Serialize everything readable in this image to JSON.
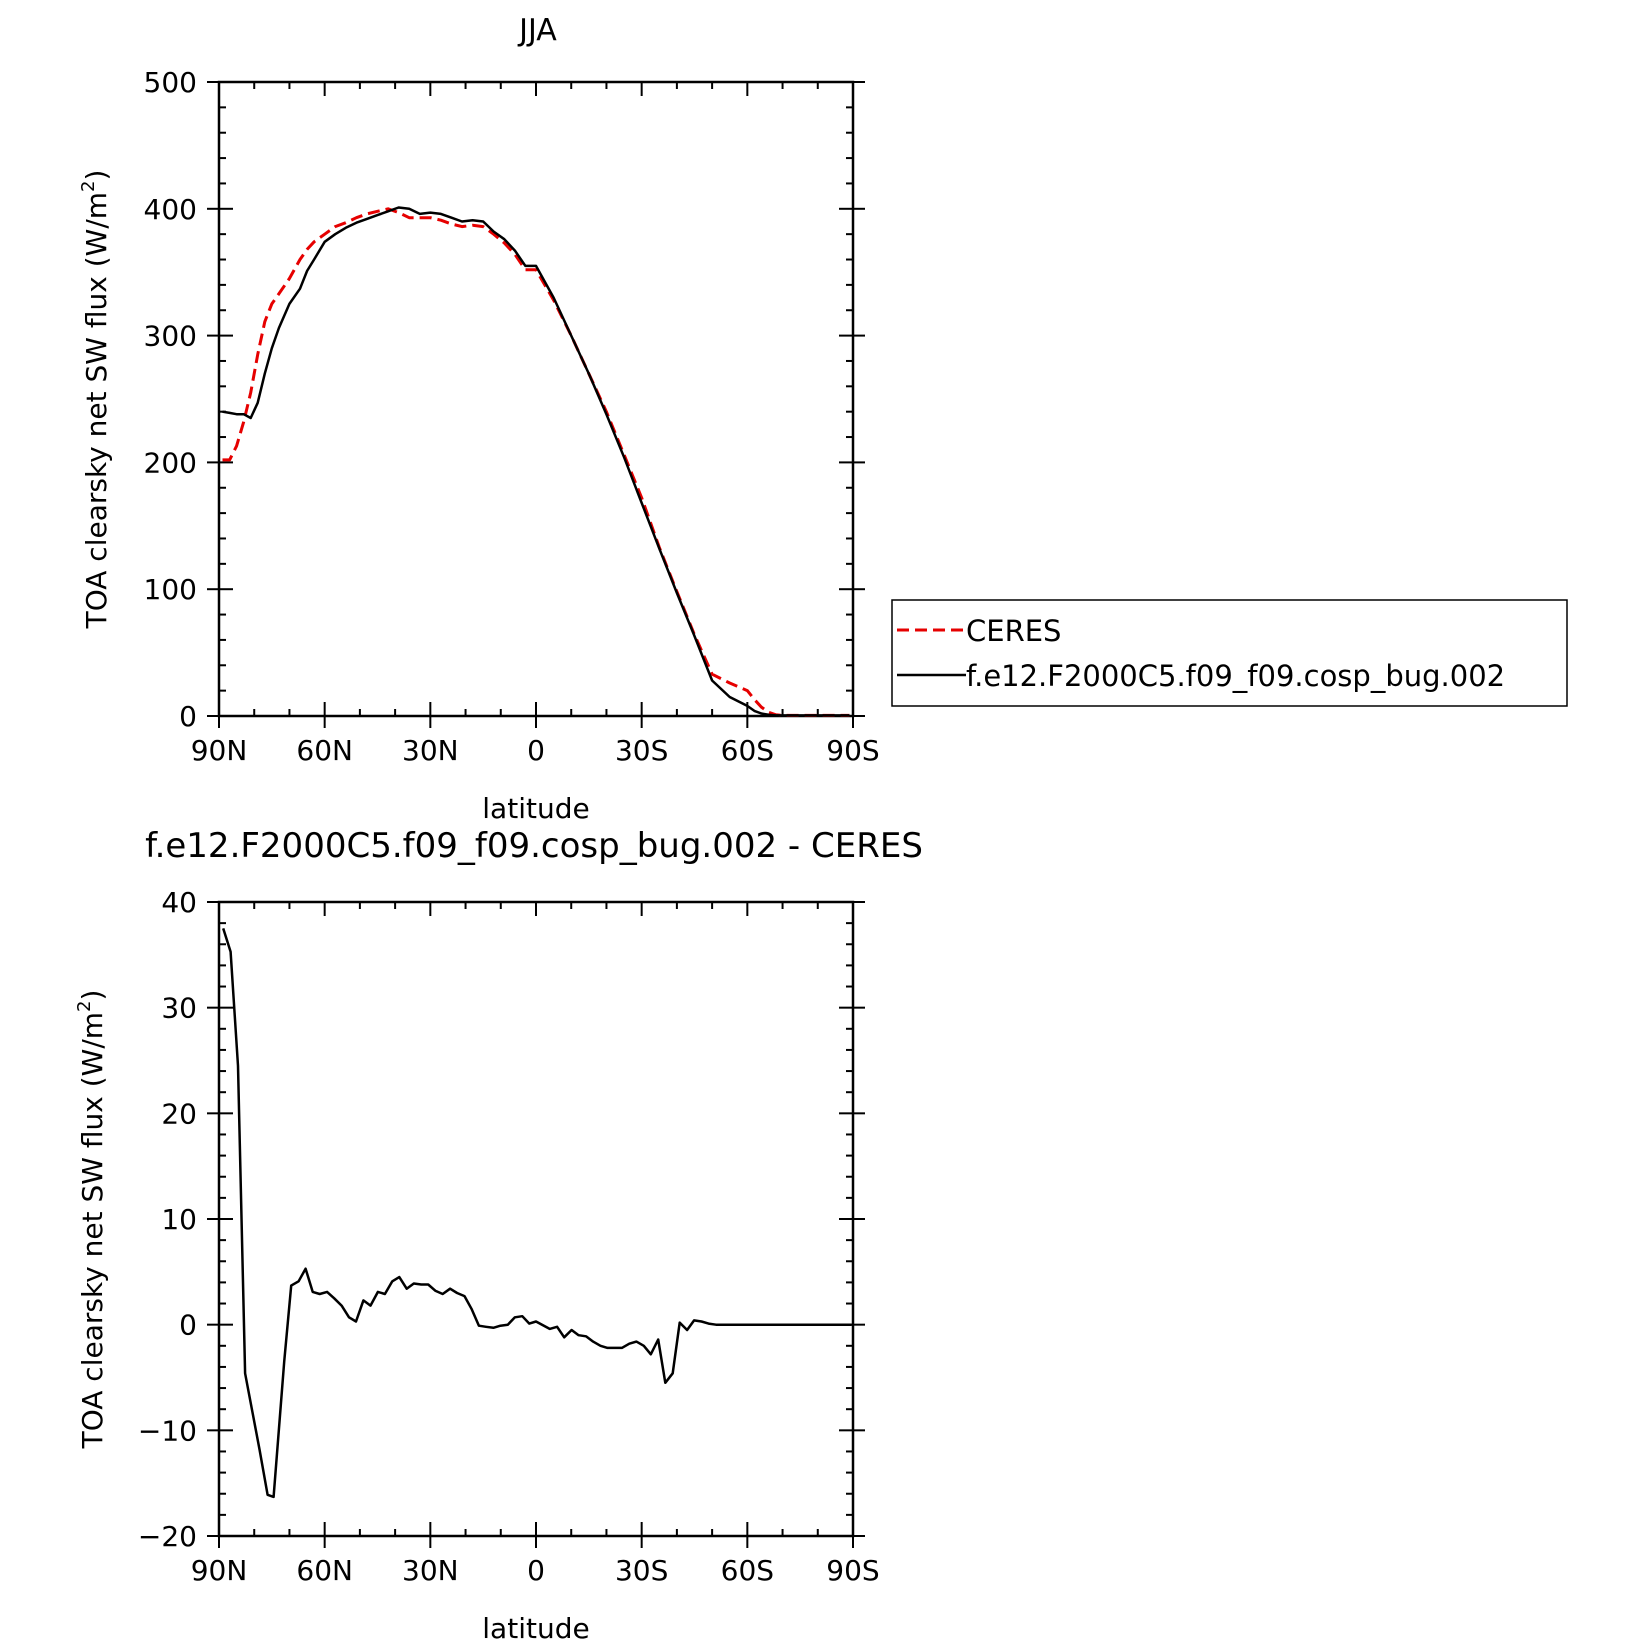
{
  "colors": {
    "ceres": "#e60000",
    "model": "#000000",
    "axis": "#000000",
    "background": "#ffffff"
  },
  "chart_data": [
    {
      "type": "line",
      "title": "JJA",
      "xlabel": "latitude",
      "ylabel": "TOA clearsky net SW flux (W/m²)",
      "ylabel_main": "TOA clearsky net SW flux (W/m",
      "ylabel_sup": "2",
      "ylabel_close": ")",
      "xlim": [
        90,
        -90
      ],
      "ylim": [
        0,
        500
      ],
      "x_ticks": [
        90,
        60,
        30,
        0,
        -30,
        -60,
        -90
      ],
      "x_tick_labels": [
        "90N",
        "60N",
        "30N",
        "0",
        "30S",
        "60S",
        "90S"
      ],
      "y_ticks": [
        0,
        100,
        200,
        300,
        400,
        500
      ],
      "y_tick_labels": [
        "0",
        "100",
        "200",
        "300",
        "400",
        "500"
      ],
      "grid": false,
      "legend": {
        "placement": "right-outside",
        "entries": [
          "CERES",
          "f.e12.F2000C5.f09_f09.cosp_bug.002"
        ]
      },
      "series": [
        {
          "name": "CERES",
          "style": "dashed",
          "color": "#e60000",
          "x": [
            89,
            87,
            85,
            83,
            81,
            79,
            77,
            75,
            73,
            70,
            67,
            65,
            63,
            60,
            57,
            54,
            51,
            48,
            45,
            42,
            39,
            36,
            33,
            30,
            27,
            24,
            21,
            18,
            15,
            12,
            9,
            6,
            3,
            0,
            -5,
            -10,
            -15,
            -20,
            -25,
            -30,
            -35,
            -40,
            -45,
            -50,
            -55,
            -60,
            -62,
            -64,
            -66,
            -68,
            -70,
            -72,
            -75,
            -78,
            -81,
            -84,
            -87,
            -89
          ],
          "y": [
            202,
            202,
            213,
            232,
            255,
            285,
            311,
            325,
            333,
            345,
            360,
            368,
            374,
            380,
            386,
            389,
            393,
            396,
            398,
            400,
            397,
            393,
            393,
            393,
            391,
            388,
            386,
            387,
            386,
            380,
            373,
            364,
            352,
            352,
            328,
            300,
            270,
            240,
            206,
            172,
            133,
            98,
            64,
            33,
            26,
            20,
            13,
            7,
            3,
            1,
            0.5,
            0.5,
            0.5,
            0.5,
            0.5,
            0.5,
            0.5,
            0.5
          ]
        },
        {
          "name": "f.e12.F2000C5.f09_f09.cosp_bug.002",
          "style": "solid",
          "color": "#000000",
          "x": [
            89,
            87,
            85,
            83,
            81,
            79,
            77,
            75,
            73,
            70,
            67,
            65,
            63,
            60,
            57,
            54,
            51,
            48,
            45,
            42,
            39,
            36,
            33,
            30,
            27,
            24,
            21,
            18,
            15,
            12,
            9,
            6,
            3,
            0,
            -5,
            -10,
            -15,
            -20,
            -25,
            -30,
            -35,
            -40,
            -45,
            -50,
            -55,
            -60,
            -62,
            -64,
            -66,
            -68,
            -70,
            -72,
            -75,
            -78,
            -81,
            -84,
            -87,
            -89
          ],
          "y": [
            240,
            239,
            238,
            238,
            235,
            247,
            270,
            290,
            306,
            325,
            337,
            351,
            360,
            374,
            380,
            385,
            389,
            392,
            395,
            398,
            401,
            400,
            396,
            397,
            396,
            393,
            390,
            391,
            390,
            382,
            376,
            367,
            355,
            355,
            330,
            300,
            270,
            238,
            204,
            168,
            132,
            97,
            63,
            28,
            15,
            8,
            4,
            2,
            1,
            0.5,
            0.5,
            0.5,
            0.5,
            0.5,
            0.5,
            0.5,
            0.5,
            0.5
          ]
        }
      ]
    },
    {
      "type": "line",
      "title": "f.e12.F2000C5.f09_f09.cosp_bug.002 - CERES",
      "xlabel": "latitude",
      "ylabel": "TOA clearsky net SW flux (W/m²)",
      "ylabel_main": "TOA clearsky net SW flux (W/m",
      "ylabel_sup": "2",
      "ylabel_close": ")",
      "xlim": [
        90,
        -90
      ],
      "ylim": [
        -20,
        40
      ],
      "x_ticks": [
        90,
        60,
        30,
        0,
        -30,
        -60,
        -90
      ],
      "x_tick_labels": [
        "90N",
        "60N",
        "30N",
        "0",
        "30S",
        "60S",
        "90S"
      ],
      "y_ticks": [
        -20,
        -10,
        0,
        10,
        20,
        30,
        40
      ],
      "y_tick_labels": [
        "−20",
        "−10",
        "0",
        "10",
        "20",
        "30",
        "40"
      ],
      "grid": false,
      "series": [
        {
          "name": "f.e12.F2000C5.f09_f09.cosp_bug.002 - CERES",
          "style": "solid",
          "color": "#000000",
          "x": [
            88.8,
            86.7,
            84.6,
            82.6,
            80.6,
            78.5,
            76.2,
            74.5,
            72.7,
            71.5,
            69.5,
            67.4,
            65.4,
            63.4,
            61.4,
            59.3,
            57.3,
            55.2,
            53.1,
            51.1,
            49.0,
            47.0,
            44.9,
            42.9,
            40.8,
            38.8,
            36.7,
            34.7,
            32.6,
            30.6,
            28.5,
            26.5,
            24.4,
            22.4,
            20.3,
            18.3,
            16.2,
            14.2,
            12.1,
            10.1,
            8.0,
            6.0,
            3.9,
            1.9,
            0,
            -3.9,
            -6.0,
            -8.0,
            -10.1,
            -12.1,
            -14.2,
            -16.2,
            -18.3,
            -20.3,
            -22.4,
            -24.4,
            -26.5,
            -28.5,
            -30.6,
            -32.6,
            -34.7,
            -36.7,
            -38.8,
            -40.8,
            -42.9,
            -44.9,
            -47.0,
            -49.0,
            -51.1,
            -53.1,
            -55.2,
            -57.3,
            -59.3,
            -61.4,
            -63.4,
            -65.4,
            -67.4,
            -69.5,
            -71.5,
            -73.5,
            -75.5,
            -77.6,
            -79.6,
            -81.6,
            -83.6,
            -85.6,
            -87.6,
            -89.6
          ],
          "y": [
            37.5,
            35.3,
            24.5,
            -4.6,
            -8.1,
            -11.8,
            -16.1,
            -16.3,
            -8.7,
            -3.5,
            3.7,
            4.1,
            5.3,
            3.1,
            2.9,
            3.1,
            2.5,
            1.8,
            0.7,
            0.3,
            2.3,
            1.8,
            3.1,
            2.9,
            4.1,
            4.5,
            3.4,
            3.9,
            3.8,
            3.8,
            3.2,
            2.9,
            3.4,
            3.0,
            2.7,
            1.5,
            -0.1,
            -0.2,
            -0.3,
            -0.1,
            0.0,
            0.7,
            0.8,
            0.1,
            0.3,
            -0.4,
            -0.2,
            -1.2,
            -0.5,
            -1.0,
            -1.1,
            -1.6,
            -2.0,
            -2.2,
            -2.2,
            -2.2,
            -1.8,
            -1.6,
            -2.0,
            -2.8,
            -1.4,
            -5.5,
            -4.6,
            0.2,
            -0.5,
            0.4,
            0.3,
            0.1,
            0.0,
            0.0,
            0.0,
            0.0,
            0.0,
            0.0,
            0.0,
            0.0,
            0.0,
            0.0,
            0.0,
            0.0,
            0.0,
            0.0,
            0.0,
            0.0,
            0.0,
            0.0,
            0.0,
            0.0
          ]
        }
      ]
    }
  ]
}
